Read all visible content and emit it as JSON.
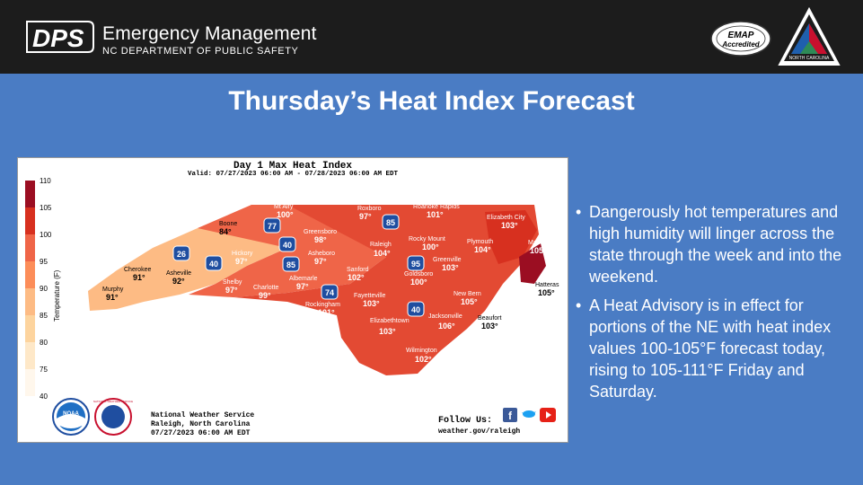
{
  "header": {
    "dps_logo_text": "DPS",
    "title": "Emergency Management",
    "subtitle": "NC DEPARTMENT OF PUBLIC SAFETY",
    "emap_line1": "EMAP",
    "emap_line2": "Accredited",
    "ncem_badge_text": "NORTH CAROLINA"
  },
  "slide": {
    "title": "Thursday’s Heat Index Forecast"
  },
  "map": {
    "title": "Day 1 Max Heat Index",
    "valid": "Valid: 07/27/2023 06:00 AM - 07/28/2023 06:00 AM EDT",
    "legend_label": "Temperature (F)",
    "legend_ticks": [
      "110",
      "105",
      "100",
      "95",
      "90",
      "85",
      "80",
      "75",
      "40"
    ],
    "legend_colors": [
      "#9b0e22",
      "#d7301f",
      "#ef6548",
      "#fc8d59",
      "#fdbb84",
      "#fdd49e",
      "#fee8c8",
      "#fff7ec",
      "#d9d9d9"
    ],
    "cities": [
      {
        "name": "Mt Airy",
        "value": "100°"
      },
      {
        "name": "Roxboro",
        "value": "97°"
      },
      {
        "name": "Roanoke Rapids",
        "value": "101°"
      },
      {
        "name": "Elizabeth City",
        "value": "103°"
      },
      {
        "name": "Boone",
        "value": "84°"
      },
      {
        "name": "Greensboro",
        "value": "98°"
      },
      {
        "name": "Raleigh",
        "value": "104°"
      },
      {
        "name": "Rocky Mount",
        "value": "100°"
      },
      {
        "name": "Plymouth",
        "value": "104°"
      },
      {
        "name": "Manteo",
        "value": "105°"
      },
      {
        "name": "Hickory",
        "value": "97°"
      },
      {
        "name": "Asheboro",
        "value": "97°"
      },
      {
        "name": "Greenville",
        "value": "103°"
      },
      {
        "name": "Cherokee",
        "value": "91°"
      },
      {
        "name": "Asheville",
        "value": "92°"
      },
      {
        "name": "Sanford",
        "value": "102°"
      },
      {
        "name": "Goldsboro",
        "value": "100°"
      },
      {
        "name": "Hatteras",
        "value": "105°"
      },
      {
        "name": "Shelby",
        "value": "97°"
      },
      {
        "name": "Charlotte",
        "value": "99°"
      },
      {
        "name": "Albemarle",
        "value": "97°"
      },
      {
        "name": "Murphy",
        "value": "91°"
      },
      {
        "name": "Fayetteville",
        "value": "103°"
      },
      {
        "name": "New Bern",
        "value": "105°"
      },
      {
        "name": "Rockingham",
        "value": "101°"
      },
      {
        "name": "Elizabethtown",
        "value": "103°"
      },
      {
        "name": "Jacksonville",
        "value": "106°"
      },
      {
        "name": "Beaufort",
        "value": "103°"
      },
      {
        "name": "Wilmington",
        "value": "102°"
      }
    ],
    "interstates": [
      "77",
      "85",
      "40",
      "26",
      "85",
      "95",
      "40",
      "74",
      "40"
    ],
    "noaa_label": "NOAA",
    "nws_circle_text": "NATIONAL WEATHER SERVICE",
    "nws_name": "National Weather Service",
    "nws_office": "Raleigh, North Carolina",
    "nws_issued": "07/27/2023 06:00 AM EDT",
    "follow_us": "Follow Us:",
    "nws_url": "weather.gov/raleigh",
    "social_icons": [
      "facebook-icon",
      "twitter-icon",
      "youtube-icon"
    ]
  },
  "bullets": [
    "Dangerously hot temperatures and high humidity will linger across the state through the week and into the weekend.",
    "A Heat Advisory is in effect for portions of the NE with heat index values 100-105°F forecast today, rising to 105-111°F Friday and Saturday."
  ]
}
